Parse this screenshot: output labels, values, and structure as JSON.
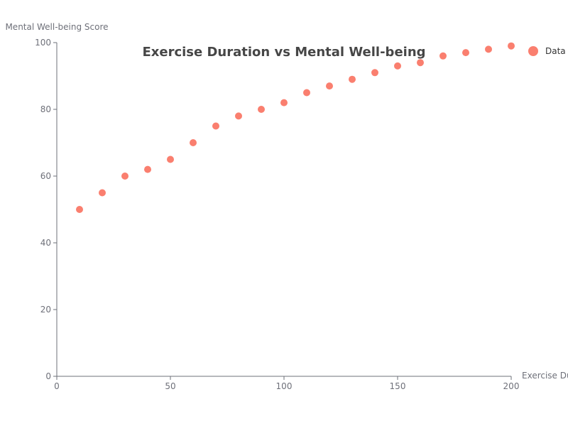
{
  "chart_data": {
    "type": "scatter",
    "title": "Exercise Duration vs Mental Well-being",
    "xlabel": "Exercise Du",
    "ylabel": "Mental Well-being Score",
    "xlim": [
      0,
      200
    ],
    "ylim": [
      0,
      100
    ],
    "x_ticks": [
      0,
      50,
      100,
      150,
      200
    ],
    "y_ticks": [
      0,
      20,
      40,
      60,
      80,
      100
    ],
    "grid": false,
    "legend": "top-right",
    "series": [
      {
        "name": "Data",
        "color": "#fa7f6f",
        "x": [
          10,
          20,
          30,
          40,
          50,
          60,
          70,
          80,
          90,
          100,
          110,
          120,
          130,
          140,
          150,
          160,
          170,
          180,
          190,
          200
        ],
        "y": [
          50,
          55,
          60,
          62,
          65,
          70,
          75,
          78,
          80,
          82,
          85,
          87,
          89,
          91,
          93,
          94,
          96,
          97,
          98,
          99
        ]
      }
    ]
  }
}
